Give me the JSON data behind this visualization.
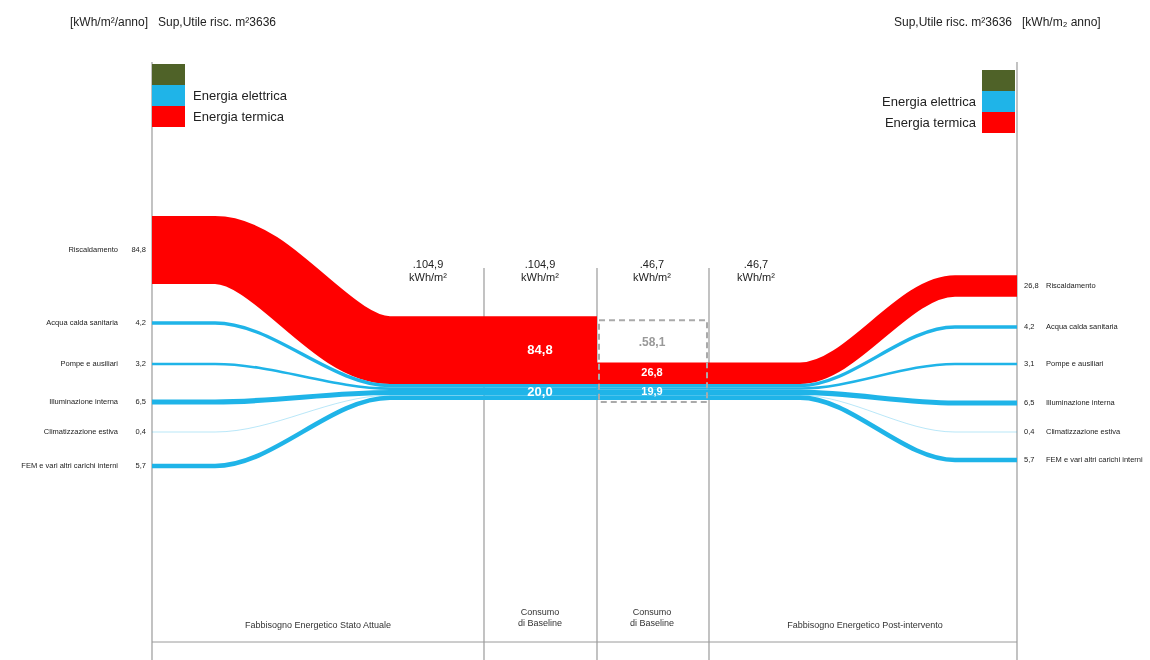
{
  "chart_data": {
    "type": "other",
    "categories": [
      "Riscaldamento",
      "Acqua calda sanitaria",
      "Pompe e ausiliari",
      "Illuminazione interna",
      "Climatizzazione estiva",
      "FEM e vari altri carichi interni"
    ],
    "colors": [
      "#ff0000",
      "#1fb4e8",
      "#1fb4e8",
      "#1fb4e8",
      "#1fb4e8",
      "#1fb4e8"
    ],
    "series": [
      {
        "values": [
          84.8,
          4.2,
          3.2,
          6.5,
          0.4,
          5.7
        ],
        "value_labels": [
          "84,8",
          "4,2",
          "3,2",
          "6,5",
          "0,4",
          "5,7"
        ]
      },
      {
        "values": [
          26.8,
          4.2,
          3.1,
          6.5,
          0.4,
          5.7
        ],
        "value_labels": [
          "26,8",
          "4,2",
          "3,1",
          "6,5",
          "0,4",
          "5,7"
        ]
      }
    ],
    "annotations": [
      "[kWh/m²/anno]",
      "Sup,Utile risc. m²3636",
      "Sup,Utile risc. m²3636",
      "[kWh/m₂ anno]",
      "Energia elettrica",
      "Energia termica",
      "Energia elettrica",
      "Energia termica",
      ".104,9\nkWh/m²",
      ".104,9\nkWh/m²",
      ".46,7\nkWh/m²",
      ".46,7\nkWh/m²",
      "84,8",
      "20,0",
      ".58,1",
      "26,8",
      "19,9",
      "Fabbisogno  Energetico  Stato  Attuale",
      "Consumo\ndi Baseline",
      "Consumo\ndi Baseline",
      "Fabbisogno  Energetico  Post-intervento"
    ]
  }
}
